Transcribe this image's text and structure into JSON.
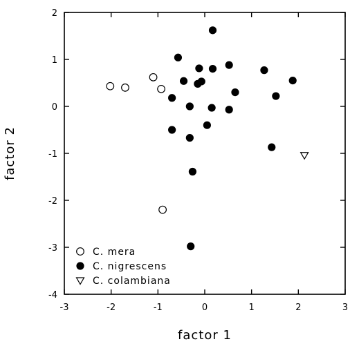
{
  "chart_data": {
    "type": "scatter",
    "xlabel": "factor 1",
    "ylabel": "factor 2",
    "xlim": [
      -3,
      3
    ],
    "ylim": [
      -4,
      2
    ],
    "xticks": [
      "-3",
      "-2",
      "-1",
      "0",
      "1",
      "2",
      "3"
    ],
    "yticks": [
      "2",
      "1",
      "0",
      "-1",
      "-2",
      "-3",
      "-4"
    ],
    "grid": false,
    "legend_position": "bottom-left",
    "series": [
      {
        "name": "C. mera",
        "marker": "open-circle",
        "points": [
          {
            "x": -2.02,
            "y": 0.43
          },
          {
            "x": -1.7,
            "y": 0.4
          },
          {
            "x": -1.1,
            "y": 0.62
          },
          {
            "x": -0.93,
            "y": 0.37
          },
          {
            "x": -0.9,
            "y": -2.2
          }
        ]
      },
      {
        "name": "C. nigrescens",
        "marker": "filled-circle",
        "points": [
          {
            "x": 0.17,
            "y": 1.62
          },
          {
            "x": -0.57,
            "y": 1.04
          },
          {
            "x": 0.52,
            "y": 0.88
          },
          {
            "x": -0.12,
            "y": 0.81
          },
          {
            "x": 0.17,
            "y": 0.8
          },
          {
            "x": 1.27,
            "y": 0.77
          },
          {
            "x": -0.45,
            "y": 0.54
          },
          {
            "x": -0.07,
            "y": 0.53
          },
          {
            "x": -0.15,
            "y": 0.48
          },
          {
            "x": 1.88,
            "y": 0.55
          },
          {
            "x": 0.65,
            "y": 0.3
          },
          {
            "x": 1.52,
            "y": 0.22
          },
          {
            "x": -0.7,
            "y": 0.18
          },
          {
            "x": -0.32,
            "y": 0.0
          },
          {
            "x": 0.15,
            "y": -0.03
          },
          {
            "x": 0.52,
            "y": -0.07
          },
          {
            "x": 0.05,
            "y": -0.4
          },
          {
            "x": -0.7,
            "y": -0.5
          },
          {
            "x": -0.32,
            "y": -0.67
          },
          {
            "x": 1.43,
            "y": -0.87
          },
          {
            "x": -0.26,
            "y": -1.39
          },
          {
            "x": -0.3,
            "y": -2.98
          }
        ]
      },
      {
        "name": "C. colambiana",
        "marker": "open-triangle-down",
        "points": [
          {
            "x": 2.13,
            "y": -1.04
          }
        ]
      }
    ]
  }
}
